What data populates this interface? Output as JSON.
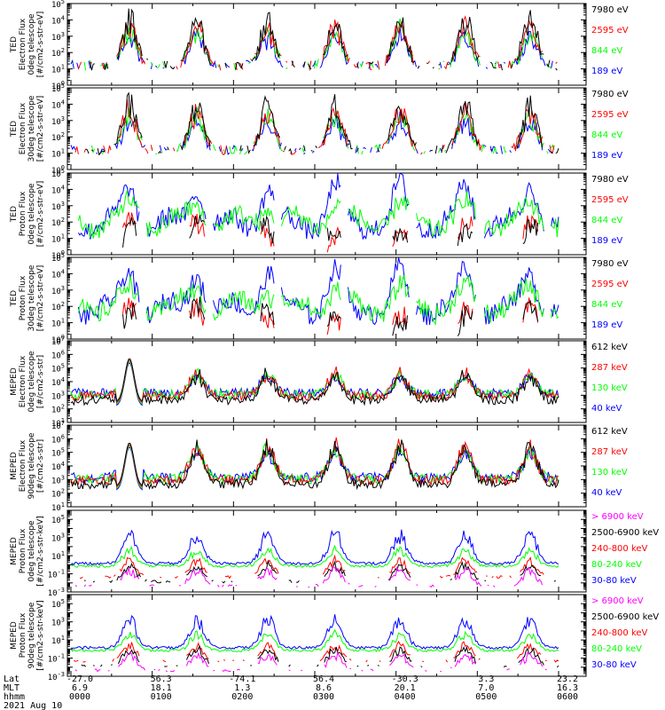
{
  "colors": {
    "black": "#000000",
    "red": "#ff0000",
    "green": "#00ff00",
    "blue": "#0000ff",
    "magenta": "#ff00ff"
  },
  "chart_data": [
    {
      "type": "line",
      "panel": 1,
      "ylabel": [
        "TED",
        "Electron Flux",
        "0deg telescope",
        "[#/cm2-s-str-eV]"
      ],
      "yscale": "log",
      "ylim_exp": [
        0,
        5
      ],
      "series": [
        {
          "name": "7980 eV",
          "color": "black"
        },
        {
          "name": "2595 eV",
          "color": "red"
        },
        {
          "name": "844 eV",
          "color": "green"
        },
        {
          "name": "189 eV",
          "color": "blue"
        }
      ]
    },
    {
      "type": "line",
      "panel": 2,
      "ylabel": [
        "TED",
        "Electron Flux",
        "30deg telescope",
        "[#/cm2-s-str-eV]"
      ],
      "yscale": "log",
      "ylim_exp": [
        0,
        5
      ],
      "series": [
        {
          "name": "7980 eV",
          "color": "black"
        },
        {
          "name": "2595 eV",
          "color": "red"
        },
        {
          "name": "844 eV",
          "color": "green"
        },
        {
          "name": "189 eV",
          "color": "blue"
        }
      ]
    },
    {
      "type": "line",
      "panel": 3,
      "ylabel": [
        "TED",
        "Proton Flux",
        "0deg telescope",
        "[#/cm2-s-str-eV]"
      ],
      "yscale": "log",
      "ylim_exp": [
        0,
        5
      ],
      "series": [
        {
          "name": "7980 eV",
          "color": "black"
        },
        {
          "name": "2595 eV",
          "color": "red"
        },
        {
          "name": "844 eV",
          "color": "green"
        },
        {
          "name": "189 eV",
          "color": "blue"
        }
      ]
    },
    {
      "type": "line",
      "panel": 4,
      "ylabel": [
        "TED",
        "Proton Flux",
        "30deg telescope",
        "[#/cm2-s-str-eV]"
      ],
      "yscale": "log",
      "ylim_exp": [
        0,
        5
      ],
      "series": [
        {
          "name": "7980 eV",
          "color": "black"
        },
        {
          "name": "2595 eV",
          "color": "red"
        },
        {
          "name": "844 eV",
          "color": "green"
        },
        {
          "name": "189 eV",
          "color": "blue"
        }
      ]
    },
    {
      "type": "line",
      "panel": 5,
      "ylabel": [
        "MEPED",
        "Electron Flux",
        "0deg telescope",
        "[#/cm2-s-str]"
      ],
      "yscale": "log",
      "ylim_exp": [
        1,
        7
      ],
      "series": [
        {
          "name": "612 keV",
          "color": "black"
        },
        {
          "name": "287 keV",
          "color": "red"
        },
        {
          "name": "130 keV",
          "color": "green"
        },
        {
          "name": "40 keV",
          "color": "blue"
        }
      ]
    },
    {
      "type": "line",
      "panel": 6,
      "ylabel": [
        "MEPED",
        "Electron Flux",
        "90deg telescope",
        "[#/cm2-s-str]"
      ],
      "yscale": "log",
      "ylim_exp": [
        1,
        7
      ],
      "series": [
        {
          "name": "612 keV",
          "color": "black"
        },
        {
          "name": "287 keV",
          "color": "red"
        },
        {
          "name": "130 keV",
          "color": "green"
        },
        {
          "name": "40 keV",
          "color": "blue"
        }
      ]
    },
    {
      "type": "line",
      "panel": 7,
      "ylabel": [
        "MEPED",
        "Proton Flux",
        "0deg telescope",
        "[#/cm2-s-str-keV]"
      ],
      "yscale": "log",
      "ylim_exp": [
        -3,
        6
      ],
      "series": [
        {
          "name": "> 6900 keV",
          "color": "magenta"
        },
        {
          "name": "2500-6900 keV",
          "color": "black"
        },
        {
          "name": "240-800 keV",
          "color": "red"
        },
        {
          "name": "80-240 keV",
          "color": "green"
        },
        {
          "name": "30-80 keV",
          "color": "blue"
        }
      ]
    },
    {
      "type": "line",
      "panel": 8,
      "ylabel": [
        "MEPED",
        "Proton Flux",
        "90deg telescope",
        "[#/cm2-s-str-keV]"
      ],
      "yscale": "log",
      "ylim_exp": [
        -3,
        6
      ],
      "series": [
        {
          "name": "> 6900 keV",
          "color": "magenta"
        },
        {
          "name": "2500-6900 keV",
          "color": "black"
        },
        {
          "name": "240-800 keV",
          "color": "red"
        },
        {
          "name": "80-240 keV",
          "color": "green"
        },
        {
          "name": "30-80 keV",
          "color": "blue"
        }
      ]
    }
  ],
  "x_axis": {
    "row_labels": [
      "Lat",
      "MLT",
      "hhmm",
      "2021 Aug 10"
    ],
    "ticks": [
      {
        "lat": "-27.0",
        "mlt": "6.9",
        "hhmm": "0000"
      },
      {
        "lat": "56.3",
        "mlt": "18.1",
        "hhmm": "0100"
      },
      {
        "lat": "-74.1",
        "mlt": "1.3",
        "hhmm": "0200"
      },
      {
        "lat": "56.4",
        "mlt": "8.6",
        "hhmm": "0300"
      },
      {
        "lat": "-30.3",
        "mlt": "20.1",
        "hhmm": "0400"
      },
      {
        "lat": "3.3",
        "mlt": "7.0",
        "hhmm": "0500"
      },
      {
        "lat": "23.2",
        "mlt": "16.3",
        "hhmm": "0600"
      }
    ]
  }
}
